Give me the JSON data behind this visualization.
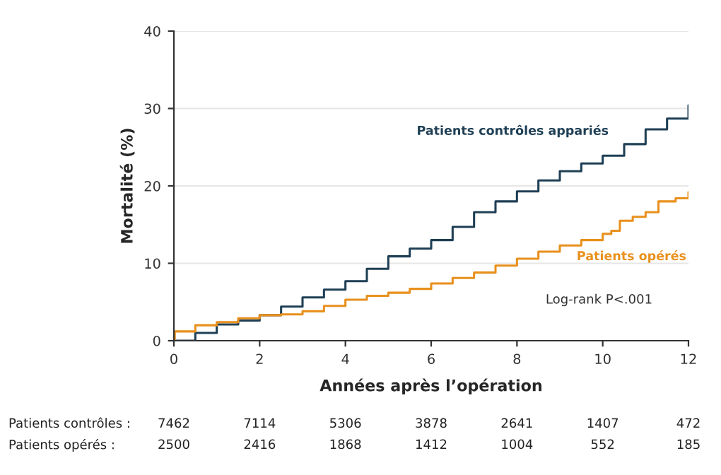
{
  "chart_data": {
    "type": "step",
    "xlabel": "Années après l’opération",
    "ylabel": "Mortalité (%)",
    "xlim": [
      0,
      12
    ],
    "xticks": [
      0,
      2,
      4,
      6,
      8,
      10,
      12
    ],
    "ylim": [
      0,
      40
    ],
    "yticks": [
      0,
      10,
      20,
      30,
      40
    ],
    "grid": "y",
    "legend": false,
    "series": [
      {
        "name": "Patients contrôles appariés",
        "color": "#1f3f55",
        "x": [
          0,
          0.5,
          1,
          1.5,
          2,
          2.5,
          3,
          3.5,
          4,
          4.5,
          5,
          5.5,
          6,
          6.5,
          7,
          7.5,
          8,
          8.5,
          9,
          9.5,
          10,
          10.5,
          11,
          11.5,
          12
        ],
        "values": [
          0,
          1.0,
          2.1,
          2.6,
          3.3,
          4.4,
          5.6,
          6.6,
          7.7,
          9.3,
          10.9,
          11.9,
          13.0,
          14.7,
          16.6,
          18.0,
          19.3,
          20.7,
          21.9,
          22.9,
          23.9,
          25.4,
          27.3,
          28.7,
          30.4
        ]
      },
      {
        "name": "Patients opérés",
        "color": "#e8901c",
        "x": [
          0,
          0.02,
          0.5,
          1,
          1.5,
          2,
          2.5,
          3,
          3.5,
          4,
          4.5,
          5,
          5.5,
          6,
          6.5,
          7,
          7.5,
          8,
          8.5,
          9,
          9.5,
          10,
          10.2,
          10.4,
          10.7,
          11,
          11.3,
          11.7,
          12
        ],
        "values": [
          0,
          1.2,
          2.0,
          2.4,
          2.9,
          3.3,
          3.4,
          3.8,
          4.5,
          5.3,
          5.8,
          6.2,
          6.7,
          7.4,
          8.1,
          8.8,
          9.7,
          10.6,
          11.5,
          12.3,
          13.0,
          13.8,
          14.2,
          15.5,
          16.0,
          16.6,
          18.0,
          18.4,
          19.2
        ]
      }
    ],
    "annotations": [
      "Log-rank P<.001",
      "Patients contrôles :",
      "7462",
      "7114",
      "5306",
      "3878",
      "2641",
      "1407",
      "472",
      "Patients opérés :",
      "2500",
      "2416",
      "1868",
      "1412",
      "1004",
      "552",
      "185"
    ]
  }
}
